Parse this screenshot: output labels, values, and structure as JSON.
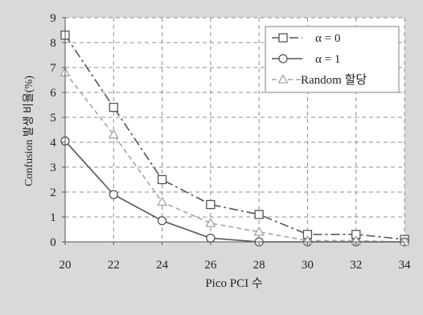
{
  "chart_data": {
    "type": "line",
    "xlabel": "Pico PCI 수",
    "ylabel": "Confusion 발생 비율(%)",
    "x": [
      20,
      22,
      24,
      26,
      28,
      30,
      32,
      34
    ],
    "xlim": [
      20,
      34
    ],
    "ylim": [
      0,
      9
    ],
    "x_ticks": [
      "20",
      "22",
      "24",
      "26",
      "28",
      "30",
      "32",
      "34"
    ],
    "y_ticks": [
      "0",
      "1",
      "2",
      "3",
      "4",
      "5",
      "6",
      "7",
      "8",
      "9"
    ],
    "grid": true,
    "legend_position": "top-right",
    "series": [
      {
        "name": "α = 0",
        "values": [
          8.3,
          5.4,
          2.5,
          1.5,
          1.1,
          0.3,
          0.3,
          0.1
        ],
        "color": "#555555",
        "marker": "square",
        "dash": "dash-dot"
      },
      {
        "name": "α = 1",
        "values": [
          4.05,
          1.9,
          0.85,
          0.15,
          0.0,
          0.0,
          0.0,
          0.0
        ],
        "color": "#555555",
        "marker": "circle",
        "dash": "solid"
      },
      {
        "name": "Random 할당",
        "values": [
          6.8,
          4.3,
          1.6,
          0.75,
          0.4,
          0.05,
          0.05,
          0.0
        ],
        "color": "#a6a6a6",
        "marker": "triangle",
        "dash": "dash"
      }
    ]
  }
}
